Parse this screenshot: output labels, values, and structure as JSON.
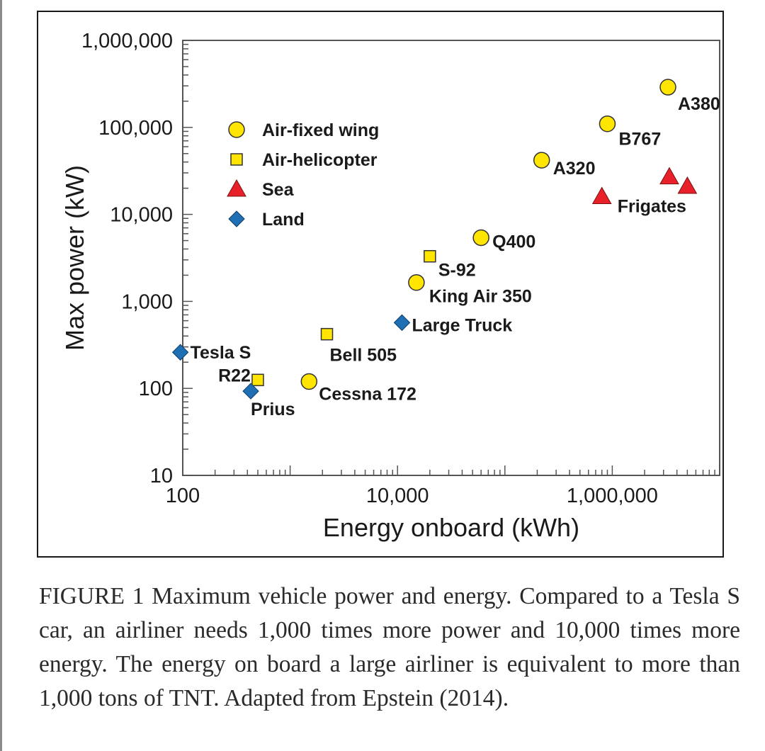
{
  "chart_data": {
    "type": "scatter",
    "xlabel": "Energy onboard (kWh)",
    "ylabel": "Max power (kW)",
    "x_scale": "log",
    "y_scale": "log",
    "xlim": [
      100,
      10000000
    ],
    "ylim": [
      10,
      1000000
    ],
    "x_ticks": [
      {
        "value": 100,
        "label": "100"
      },
      {
        "value": 10000,
        "label": "10,000"
      },
      {
        "value": 1000000,
        "label": "1,000,000"
      }
    ],
    "y_ticks": [
      {
        "value": 10,
        "label": "10"
      },
      {
        "value": 100,
        "label": "100"
      },
      {
        "value": 1000,
        "label": "1,000"
      },
      {
        "value": 10000,
        "label": "10,000"
      },
      {
        "value": 100000,
        "label": "100,000"
      },
      {
        "value": 1000000,
        "label": "1,000,000"
      }
    ],
    "grid": false,
    "legend_position": "top-left",
    "series": [
      {
        "name": "Air-fixed wing",
        "marker": "circle",
        "color": "#FFE500",
        "points": [
          {
            "label": "Cessna 172",
            "x": 1500,
            "y": 120
          },
          {
            "label": "King Air 350",
            "x": 15000,
            "y": 1650
          },
          {
            "label": "Q400",
            "x": 60000,
            "y": 5400
          },
          {
            "label": "A320",
            "x": 220000,
            "y": 42000
          },
          {
            "label": "B767",
            "x": 900000,
            "y": 110000
          },
          {
            "label": "A380",
            "x": 3300000,
            "y": 290000
          }
        ]
      },
      {
        "name": "Air-helicopter",
        "marker": "square",
        "color": "#FFE500",
        "points": [
          {
            "label": "R22",
            "x": 500,
            "y": 125
          },
          {
            "label": "Bell 505",
            "x": 2200,
            "y": 420
          },
          {
            "label": "S-92",
            "x": 20000,
            "y": 3300
          }
        ]
      },
      {
        "name": "Sea",
        "marker": "triangle",
        "color": "#E8202A",
        "points": [
          {
            "label": "Frigates",
            "x": 800000,
            "y": 16000
          },
          {
            "label": "",
            "x": 3400000,
            "y": 27000
          },
          {
            "label": "",
            "x": 5000000,
            "y": 21000
          }
        ]
      },
      {
        "name": "Land",
        "marker": "diamond",
        "color": "#1F6FB5",
        "points": [
          {
            "label": "Tesla S",
            "x": 95,
            "y": 260
          },
          {
            "label": "Prius",
            "x": 430,
            "y": 93
          },
          {
            "label": "Large Truck",
            "x": 11000,
            "y": 570
          }
        ]
      }
    ]
  },
  "caption": "FIGURE 1 Maximum vehicle power and energy. Compared to a Tesla S car, an airliner needs 1,000 times more power and 10,000 times more energy. The energy on board a large airliner is equivalent to more than 1,000 tons of TNT. Adapted from Epstein (2014)."
}
